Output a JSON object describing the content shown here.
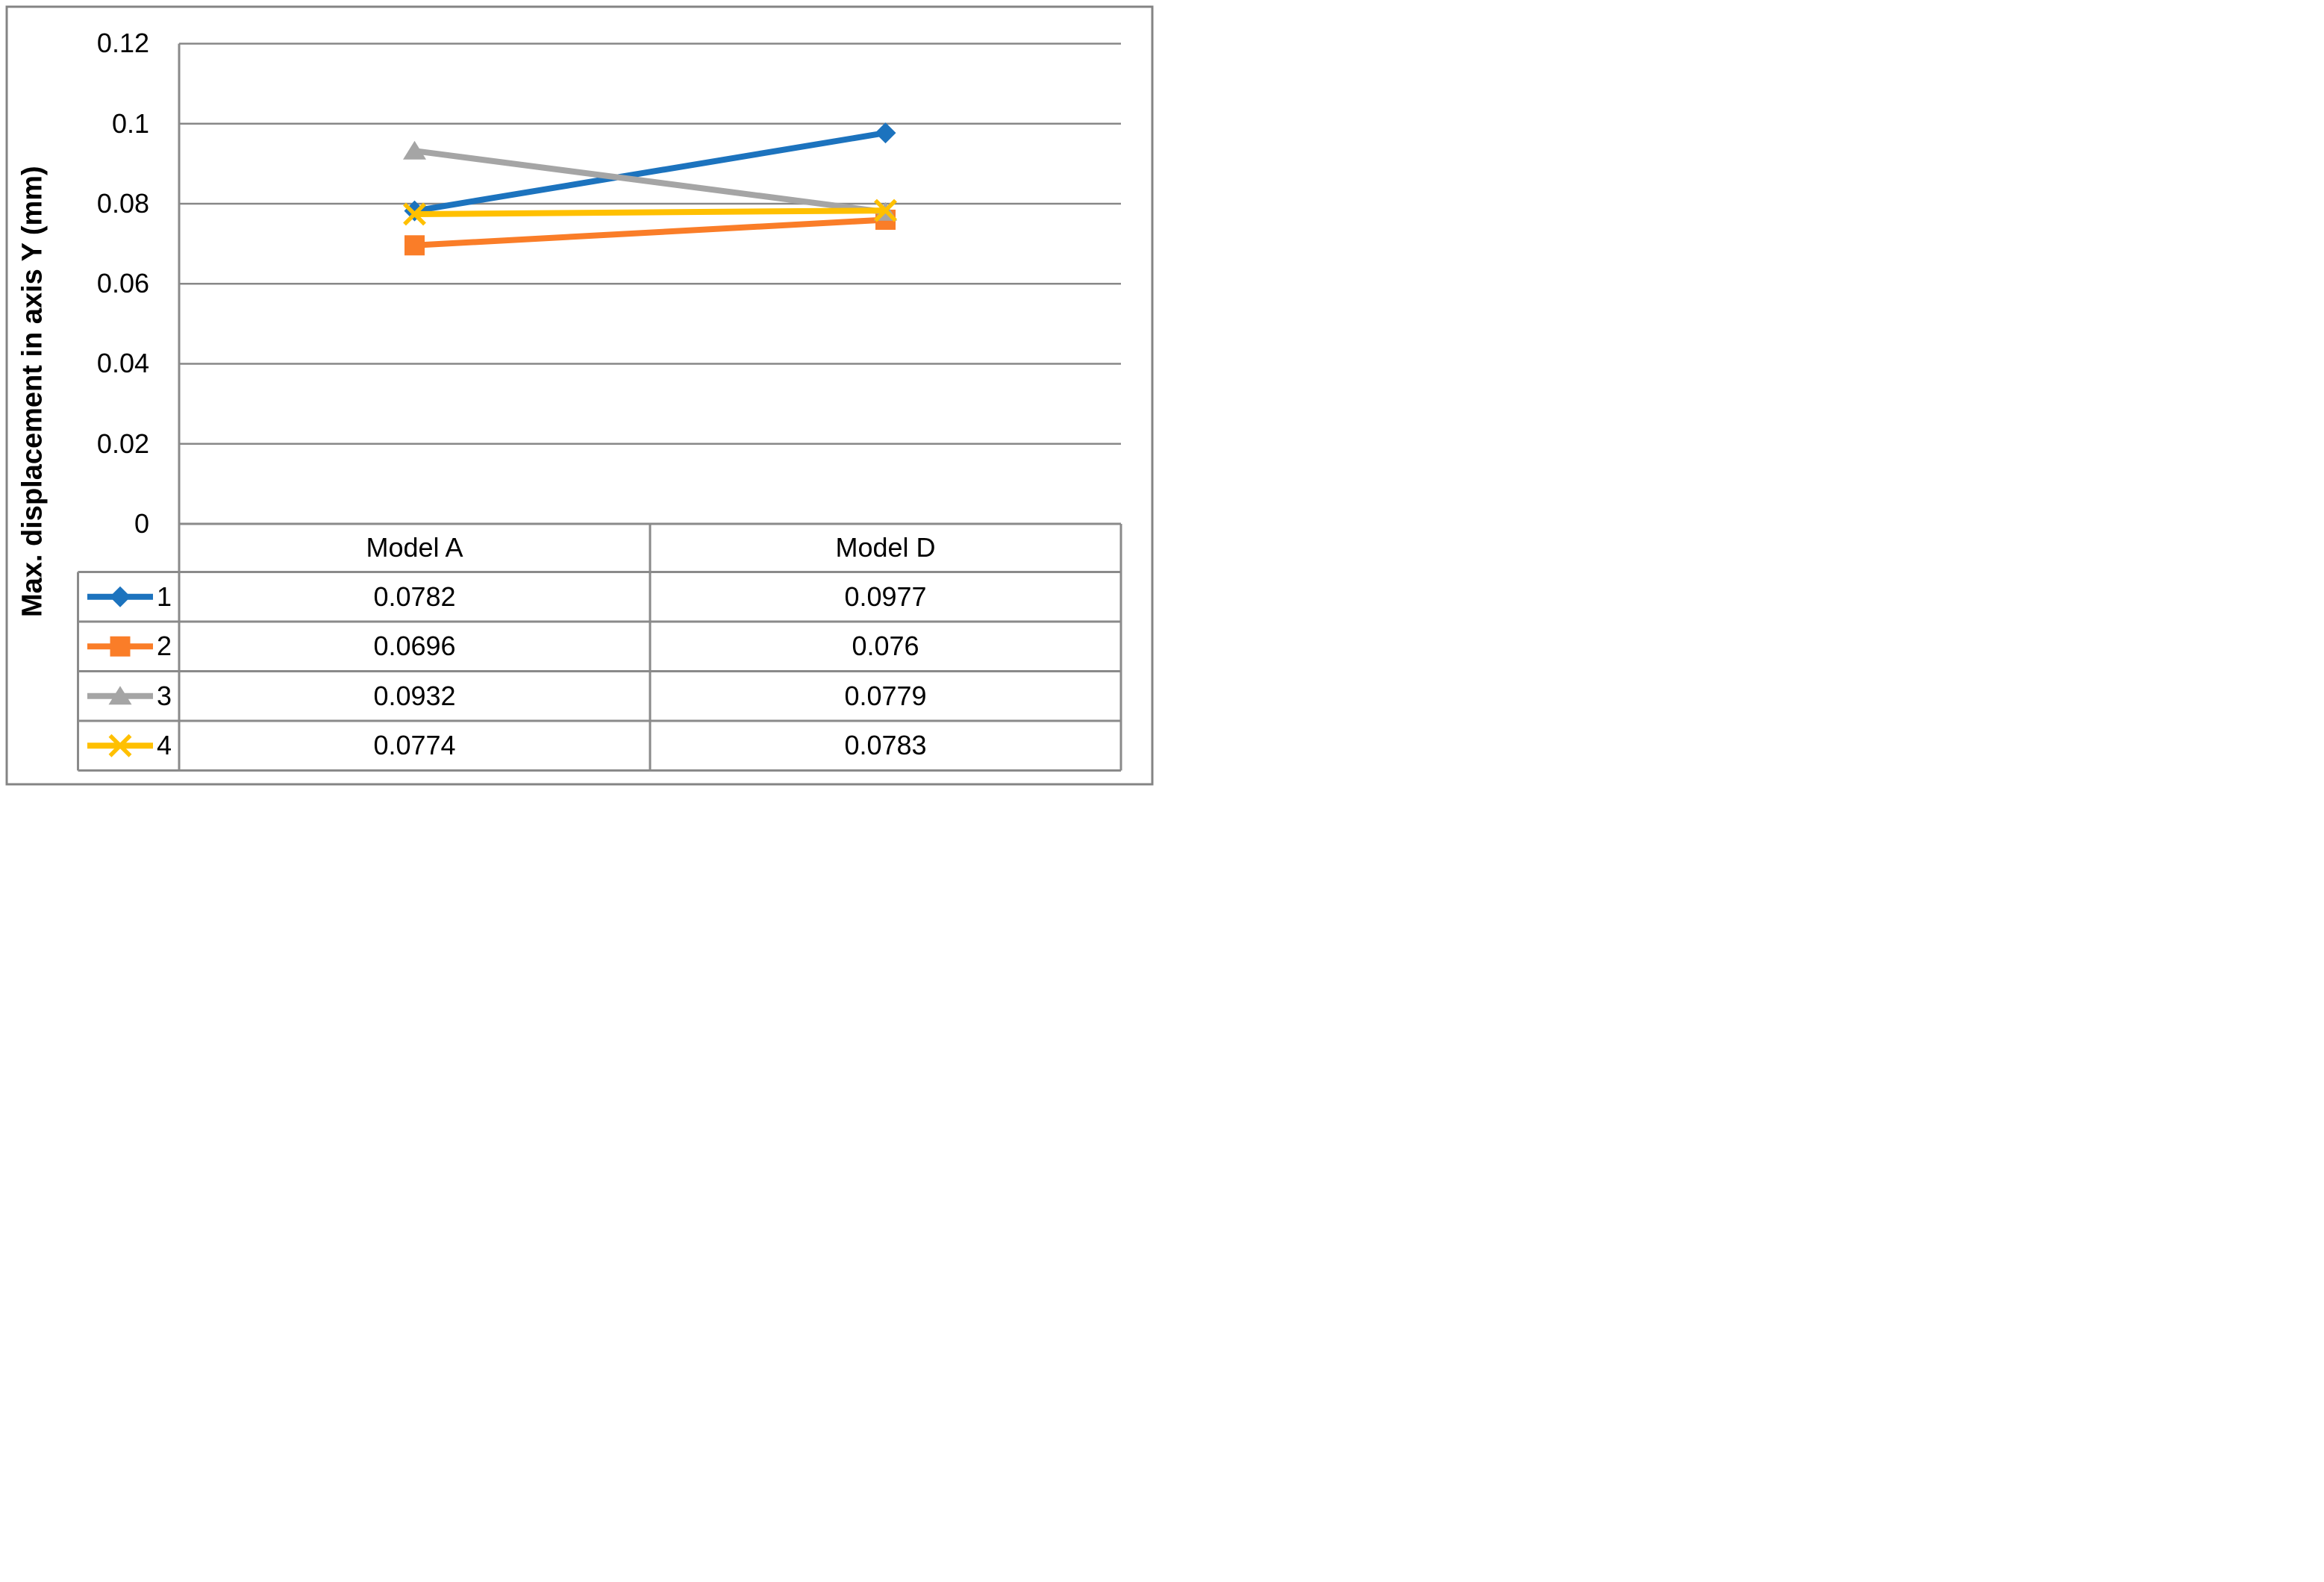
{
  "chart_data": {
    "type": "line",
    "title": "",
    "xlabel": "",
    "ylabel": "Max. displacement in axis Y (mm)",
    "categories": [
      "Model A",
      "Model D"
    ],
    "series": [
      {
        "name": "1",
        "marker": "diamond",
        "color": "#1C73BE",
        "values": [
          0.0782,
          0.0977
        ]
      },
      {
        "name": "2",
        "marker": "square",
        "color": "#FA7D28",
        "values": [
          0.0696,
          0.076
        ]
      },
      {
        "name": "3",
        "marker": "triangle",
        "color": "#A5A5A5",
        "values": [
          0.0932,
          0.0779
        ]
      },
      {
        "name": "4",
        "marker": "x",
        "color": "#FFC000",
        "values": [
          0.0774,
          0.0783
        ]
      }
    ],
    "ylim": [
      0,
      0.12
    ],
    "ytick_labels": [
      "0",
      "0.02",
      "0.04",
      "0.06",
      "0.08",
      "0.1",
      "0.12"
    ],
    "grid": true,
    "legend_position": "data-table-left",
    "grid_color": "#878787",
    "border_color": "#848484",
    "table_border_color": "#8A8A8A",
    "text_color": "#000000",
    "background_color": "#FFFFFF"
  }
}
